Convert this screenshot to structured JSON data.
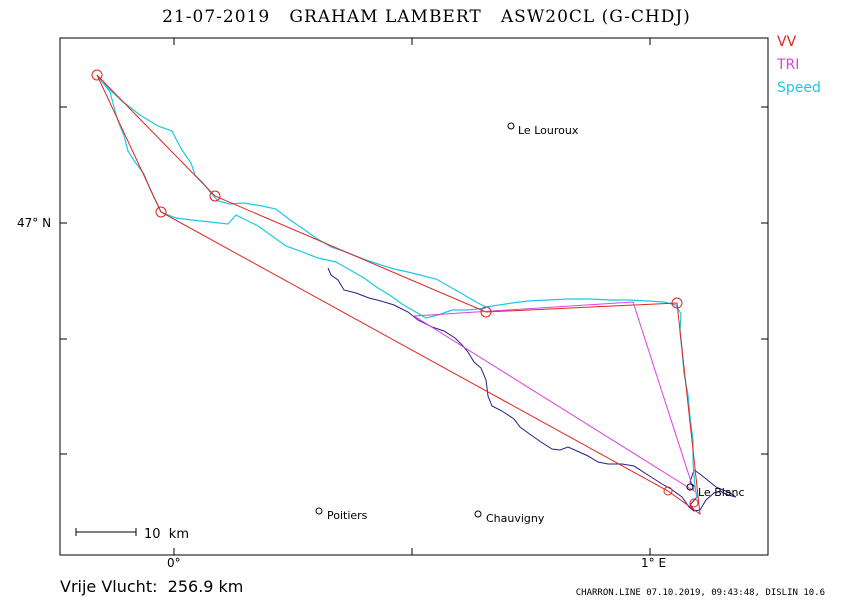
{
  "title": "21-07-2019   GRAHAM LAMBERT   ASW20CL (G-CHDJ)",
  "legend": [
    {
      "label": "VV",
      "color": "#e0241f"
    },
    {
      "label": "TRI",
      "color": "#e040e0"
    },
    {
      "label": "Speed",
      "color": "#1cc8e6"
    }
  ],
  "axes": {
    "x_tick_labels": [
      "0°",
      "1° E"
    ],
    "y_tick_labels": [
      "47° N"
    ]
  },
  "places": [
    {
      "name": "Le Louroux"
    },
    {
      "name": "Poitiers"
    },
    {
      "name": "Chauvigny"
    },
    {
      "name": "Le Blanc"
    }
  ],
  "scale_bar": {
    "label": "10  km"
  },
  "footer": {
    "distance": "Vrije Vlucht:  256.9 km",
    "info": "CHARRON.LINE 07.10.2019, 09:43:48, DISLIN 10.6"
  },
  "colors": {
    "vv_route": "#e0241f",
    "tri_route": "#e040e0",
    "speed_track": "#1cc8e6",
    "track": "#2a1a8c",
    "frame": "#000000"
  }
}
